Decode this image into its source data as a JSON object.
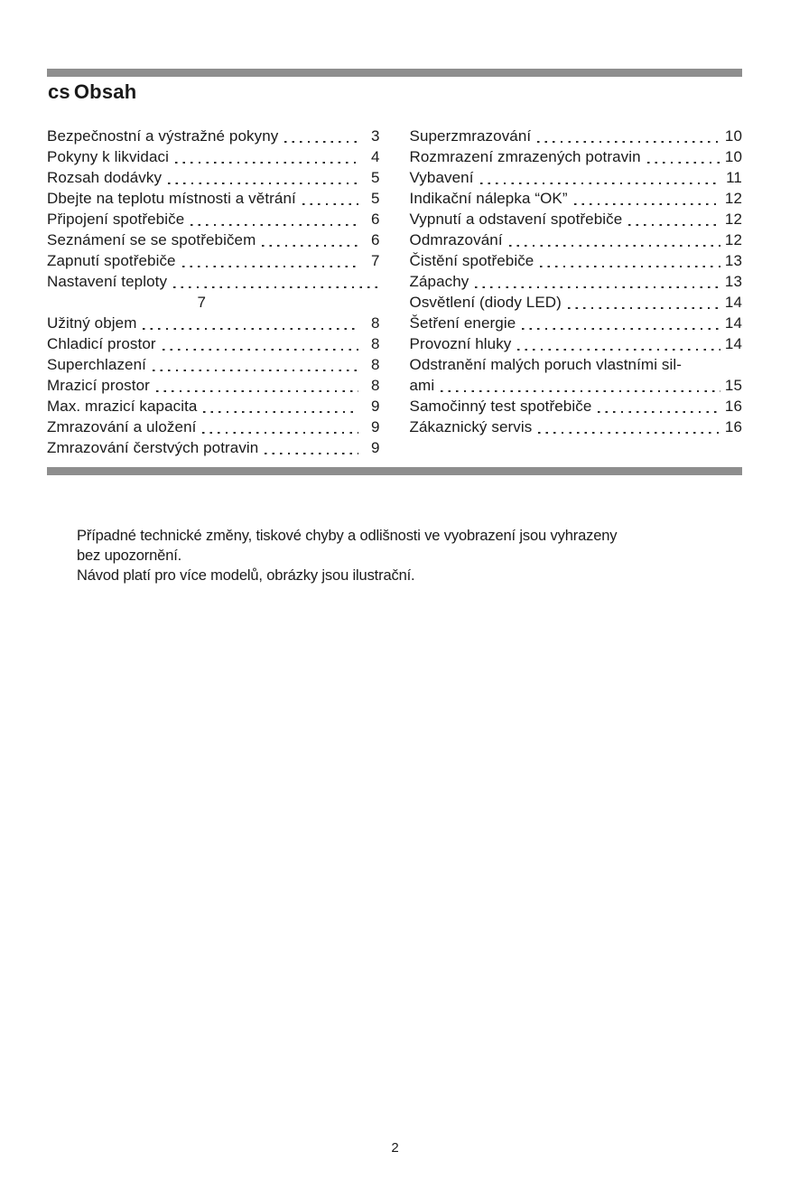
{
  "page": {
    "language_code": "cs",
    "title": "Obsah",
    "footer_page_number": "2"
  },
  "colors": {
    "rule_gray": "#8e8e8e",
    "text": "#1a1a1a"
  },
  "toc": {
    "left": [
      {
        "type": "entry",
        "label": "Bezpečnostní a výstražné pokyny",
        "page": "3"
      },
      {
        "type": "entry",
        "label": "Pokyny k likvidaci",
        "page": "4"
      },
      {
        "type": "entry",
        "label": "Rozsah dodávky",
        "page": "5"
      },
      {
        "type": "entry",
        "label": "Dbejte na teplotu místnosti a větrání",
        "page": "5"
      },
      {
        "type": "entry",
        "label": "Připojení spotřebiče",
        "page": "6"
      },
      {
        "type": "entry",
        "label": "Seznámení se se spotřebičem",
        "page": "6"
      },
      {
        "type": "entry",
        "label": "Zapnutí spotřebiče",
        "page": "7"
      },
      {
        "type": "entry",
        "label": "Nastavení teploty",
        "page": ""
      },
      {
        "type": "page-only",
        "label": "",
        "page": "7"
      },
      {
        "type": "entry",
        "label": "Užitný objem",
        "page": "8"
      },
      {
        "type": "entry",
        "label": "Chladicí prostor",
        "page": "8"
      },
      {
        "type": "entry",
        "label": "Superchlazení",
        "page": "8"
      },
      {
        "type": "entry",
        "label": "Mrazicí prostor",
        "page": "8"
      },
      {
        "type": "entry",
        "label": "Max. mrazicí kapacita",
        "page": "9"
      },
      {
        "type": "entry",
        "label": "Zmrazování a uložení",
        "page": "9"
      },
      {
        "type": "entry",
        "label": "Zmrazování čerstvých potravin",
        "page": "9"
      }
    ],
    "right": [
      {
        "type": "entry",
        "label": "Superzmrazování",
        "page": "10"
      },
      {
        "type": "entry",
        "label": "Rozmrazení zmrazených potravin",
        "page": "10"
      },
      {
        "type": "entry",
        "label": "Vybavení",
        "page": "11"
      },
      {
        "type": "entry",
        "label": "Indikační nálepka “OK”",
        "page": "12"
      },
      {
        "type": "entry",
        "label": "Vypnutí a odstavení spotřebiče",
        "page": "12"
      },
      {
        "type": "entry",
        "label": "Odmrazování",
        "page": "12"
      },
      {
        "type": "entry",
        "label": "Čistění spotřebiče",
        "page": "13"
      },
      {
        "type": "entry",
        "label": "Zápachy",
        "page": "13"
      },
      {
        "type": "entry",
        "label": "Osvětlení (diody LED)",
        "page": "14"
      },
      {
        "type": "entry",
        "label": "Šetření energie",
        "page": "14"
      },
      {
        "type": "entry",
        "label": "Provozní hluky",
        "page": "14"
      },
      {
        "type": "label-only",
        "label": "Odstranění malých poruch vlastními sil-",
        "page": ""
      },
      {
        "type": "entry",
        "label": "ami",
        "page": "15"
      },
      {
        "type": "entry",
        "label": "Samočinný test spotřebiče",
        "page": "16"
      },
      {
        "type": "entry",
        "label": "Zákaznický servis",
        "page": "16"
      }
    ]
  },
  "notes": {
    "lines": [
      "Případné technické změny, tiskové chyby a odlišnosti ve vyobrazení jsou vyhrazeny",
      "bez upozornění.",
      "Návod platí pro více modelů, obrázky jsou ilustrační."
    ]
  }
}
